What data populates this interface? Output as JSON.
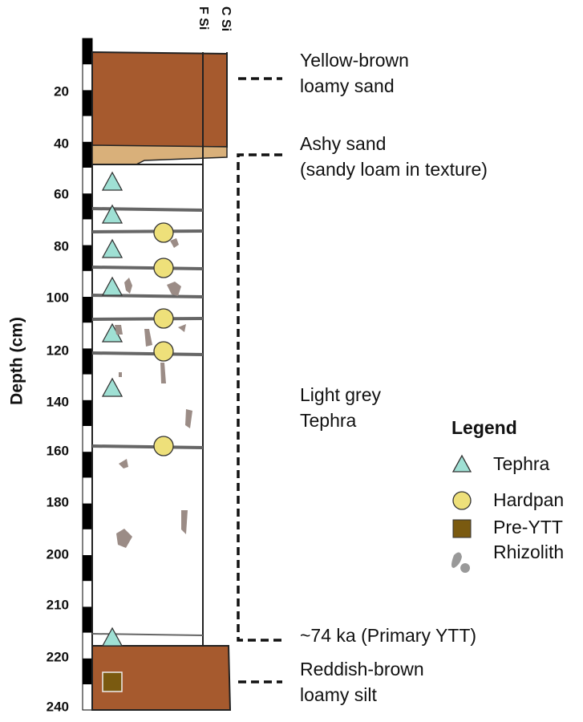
{
  "axis": {
    "title": "Depth (cm)",
    "ticks": [
      "20",
      "40",
      "60",
      "80",
      "100",
      "120",
      "140",
      "160",
      "180",
      "200",
      "210",
      "220",
      "240"
    ]
  },
  "columns": [
    "F Si",
    "C Si"
  ],
  "layers": [
    {
      "lines": [
        "Yellow-brown",
        "loamy sand"
      ]
    },
    {
      "lines": [
        "Ashy sand",
        "(sandy loam in texture)"
      ]
    },
    {
      "lines": [
        "Light grey",
        "Tephra"
      ]
    },
    {
      "lines": [
        "~74 ka (Primary YTT)"
      ]
    },
    {
      "lines": [
        "Reddish-brown",
        "loamy silt"
      ]
    }
  ],
  "legend": {
    "title": "Legend",
    "items": [
      "Tephra",
      "Hardpan",
      "Pre-YTT",
      "Rhizolith"
    ]
  }
}
